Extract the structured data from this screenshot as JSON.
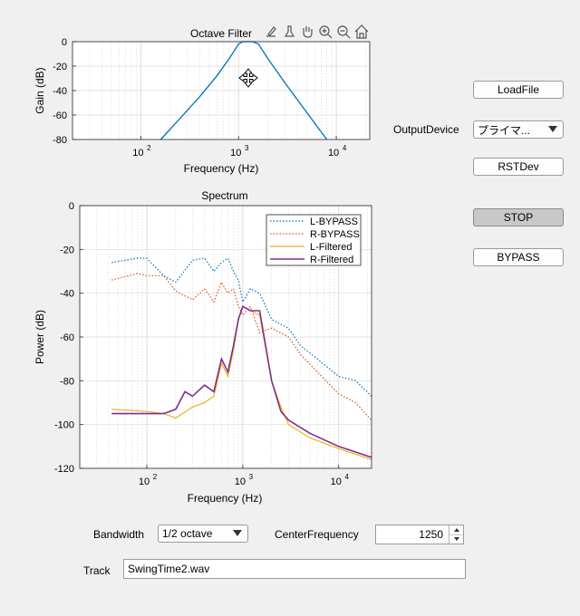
{
  "octave_plot": {
    "title": "Octave Filter",
    "xlabel": "Frequency (Hz)",
    "ylabel": "Gain (dB)",
    "yticks": [
      "0",
      "-20",
      "-40",
      "-60",
      "-80"
    ],
    "xticks": [
      "10",
      "10",
      "10"
    ],
    "xtick_exps": [
      "2",
      "3",
      "4"
    ],
    "toolbar": [
      "export-icon",
      "brush-icon",
      "pan-hand-icon",
      "zoom-in-icon",
      "zoom-out-icon",
      "home-icon"
    ]
  },
  "spectrum_plot": {
    "title": "Spectrum",
    "xlabel": "Frequency (Hz)",
    "ylabel": "Power (dB)",
    "yticks": [
      "0",
      "-20",
      "-40",
      "-60",
      "-80",
      "-100",
      "-120"
    ],
    "xticks": [
      "10",
      "10",
      "10"
    ],
    "xtick_exps": [
      "2",
      "3",
      "4"
    ],
    "legend": [
      "L-BYPASS",
      "R-BYPASS",
      "L-Filtered",
      "R-Filtered"
    ]
  },
  "chart_data": [
    {
      "type": "line",
      "title": "Octave Filter",
      "xlabel": "Frequency (Hz)",
      "ylabel": "Gain (dB)",
      "xscale": "log",
      "xlim": [
        20,
        22000
      ],
      "ylim": [
        -80,
        0
      ],
      "grid": true,
      "series": [
        {
          "color": "#0072bd",
          "x": [
            160,
            250,
            400,
            600,
            800,
            1000,
            1100,
            1250,
            1400,
            1600,
            2000,
            3000,
            5000,
            8000
          ],
          "y": [
            -80,
            -63,
            -45,
            -28,
            -14,
            -2,
            0,
            0,
            0,
            -2,
            -14,
            -34,
            -58,
            -80
          ]
        }
      ]
    },
    {
      "type": "line",
      "title": "Spectrum",
      "xlabel": "Frequency (Hz)",
      "ylabel": "Power (dB)",
      "xscale": "log",
      "xlim": [
        20,
        22000
      ],
      "ylim": [
        -120,
        0
      ],
      "grid": true,
      "legend_position": "top-right",
      "series": [
        {
          "name": "L-BYPASS",
          "color": "#0072bd",
          "style": "dotted",
          "x": [
            43,
            80,
            100,
            150,
            200,
            300,
            400,
            500,
            600,
            700,
            800,
            900,
            1000,
            1200,
            1500,
            2000,
            3000,
            4000,
            6000,
            10000,
            15000,
            22000
          ],
          "y": [
            -26,
            -24,
            -24,
            -32,
            -35,
            -25,
            -24,
            -30,
            -26,
            -24,
            -30,
            -34,
            -44,
            -38,
            -40,
            -52,
            -56,
            -64,
            -70,
            -78,
            -80,
            -87
          ]
        },
        {
          "name": "R-BYPASS",
          "color": "#d95319",
          "style": "dotted",
          "x": [
            43,
            80,
            100,
            150,
            200,
            300,
            400,
            500,
            600,
            700,
            800,
            900,
            1000,
            1200,
            1500,
            2000,
            3000,
            4000,
            6000,
            10000,
            15000,
            22000
          ],
          "y": [
            -34,
            -31,
            -32,
            -32,
            -39,
            -43,
            -38,
            -44,
            -35,
            -40,
            -38,
            -46,
            -50,
            -46,
            -58,
            -56,
            -60,
            -68,
            -76,
            -86,
            -90,
            -98
          ]
        },
        {
          "name": "L-Filtered",
          "color": "#edb120",
          "style": "solid",
          "x": [
            43,
            100,
            150,
            200,
            300,
            400,
            500,
            600,
            700,
            800,
            900,
            1000,
            1200,
            1500,
            2000,
            2500,
            3000,
            5000,
            10000,
            22000
          ],
          "y": [
            -93,
            -94,
            -95,
            -97,
            -92,
            -90,
            -87,
            -72,
            -78,
            -66,
            -52,
            -46,
            -48,
            -50,
            -80,
            -92,
            -100,
            -106,
            -111,
            -116
          ]
        },
        {
          "name": "R-Filtered",
          "color": "#7e2f8e",
          "style": "solid",
          "x": [
            43,
            100,
            150,
            200,
            250,
            300,
            400,
            500,
            600,
            700,
            800,
            900,
            1000,
            1200,
            1500,
            2000,
            2500,
            3000,
            5000,
            10000,
            22000
          ],
          "y": [
            -95,
            -95,
            -95,
            -93,
            -85,
            -87,
            -82,
            -85,
            -70,
            -76,
            -64,
            -52,
            -46,
            -48,
            -48,
            -80,
            -94,
            -98,
            -104,
            -110,
            -115
          ]
        }
      ]
    }
  ],
  "controls": {
    "load_file": "LoadFile",
    "output_device_label": "OutputDevice",
    "output_device_value": "プライマ...",
    "rst_dev": "RSTDev",
    "stop": "STOP",
    "bypass": "BYPASS",
    "bandwidth_label": "Bandwidth",
    "bandwidth_value": "1/2 octave",
    "center_freq_label": "CenterFrequency",
    "center_freq_value": "1250",
    "track_label": "Track",
    "track_value": "SwingTime2.wav"
  }
}
